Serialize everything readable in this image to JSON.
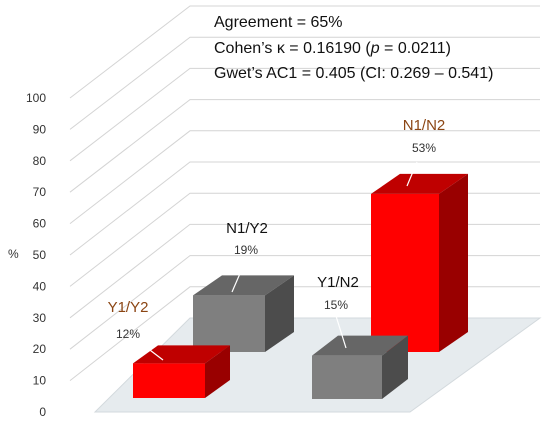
{
  "annotations": {
    "agreement": "Agreement = 65%",
    "kappa_prefix": "Cohen’s κ = 0.16190 (",
    "kappa_p": "p",
    "kappa_suffix": " = 0.0211)",
    "gwet": "Gwet’s AC1 = 0.405 (CI: 0.269 – 0.541)"
  },
  "chart_data": {
    "type": "bar",
    "style": "3d",
    "title": "",
    "xlabel": "",
    "ylabel": "%",
    "ylim": [
      0,
      100
    ],
    "yticks": [
      0,
      10,
      20,
      30,
      40,
      50,
      60,
      70,
      80,
      90,
      100
    ],
    "grid": true,
    "categories": [
      "Y1/Y2",
      "N1/Y2",
      "Y1/N2",
      "N1/N2"
    ],
    "values": [
      12,
      19,
      15,
      53
    ],
    "value_labels": [
      "12%",
      "19%",
      "15%",
      "53%"
    ],
    "colors": [
      "#ff0000",
      "#7f7f7f",
      "#7f7f7f",
      "#ff0000"
    ],
    "label_colors": [
      "#8b4513",
      "#111111",
      "#111111",
      "#8b4513"
    ]
  }
}
